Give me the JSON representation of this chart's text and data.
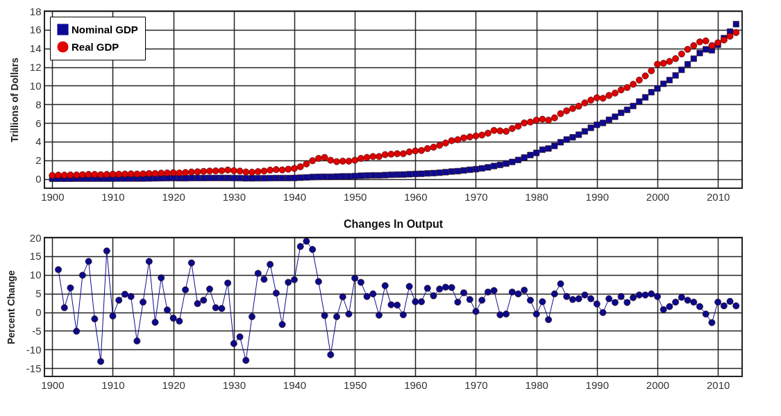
{
  "chart_data": [
    {
      "type": "scatter",
      "ylabel": "Trillions of Dollars",
      "xlim": [
        1898.7,
        2014
      ],
      "ylim": [
        -1,
        18
      ],
      "xticks": [
        1900,
        1910,
        1920,
        1930,
        1940,
        1950,
        1960,
        1970,
        1980,
        1990,
        2000,
        2010
      ],
      "yticks": [
        0,
        2,
        4,
        6,
        8,
        10,
        12,
        14,
        16,
        18
      ],
      "grid": true,
      "legend": "top left",
      "x": [
        1900,
        1901,
        1902,
        1903,
        1904,
        1905,
        1906,
        1907,
        1908,
        1909,
        1910,
        1911,
        1912,
        1913,
        1914,
        1915,
        1916,
        1917,
        1918,
        1919,
        1920,
        1921,
        1922,
        1923,
        1924,
        1925,
        1926,
        1927,
        1928,
        1929,
        1930,
        1931,
        1932,
        1933,
        1934,
        1935,
        1936,
        1937,
        1938,
        1939,
        1940,
        1941,
        1942,
        1943,
        1944,
        1945,
        1946,
        1947,
        1948,
        1949,
        1950,
        1951,
        1952,
        1953,
        1954,
        1955,
        1956,
        1957,
        1958,
        1959,
        1960,
        1961,
        1962,
        1963,
        1964,
        1965,
        1966,
        1967,
        1968,
        1969,
        1970,
        1971,
        1972,
        1973,
        1974,
        1975,
        1976,
        1977,
        1978,
        1979,
        1980,
        1981,
        1982,
        1983,
        1984,
        1985,
        1986,
        1987,
        1988,
        1989,
        1990,
        1991,
        1992,
        1993,
        1994,
        1995,
        1996,
        1997,
        1998,
        1999,
        2000,
        2001,
        2002,
        2003,
        2004,
        2005,
        2006,
        2007,
        2008,
        2009,
        2010,
        2011,
        2012,
        2013
      ],
      "series": [
        {
          "name": "Nominal GDP",
          "color": "#0a0a96",
          "marker": "square",
          "values": [
            0.02,
            0.02,
            0.02,
            0.02,
            0.03,
            0.03,
            0.03,
            0.03,
            0.03,
            0.03,
            0.03,
            0.04,
            0.04,
            0.04,
            0.04,
            0.04,
            0.05,
            0.06,
            0.07,
            0.08,
            0.09,
            0.07,
            0.07,
            0.09,
            0.09,
            0.09,
            0.1,
            0.1,
            0.1,
            0.1,
            0.09,
            0.08,
            0.06,
            0.06,
            0.07,
            0.07,
            0.08,
            0.09,
            0.09,
            0.09,
            0.1,
            0.13,
            0.16,
            0.2,
            0.22,
            0.23,
            0.23,
            0.25,
            0.27,
            0.27,
            0.3,
            0.34,
            0.36,
            0.38,
            0.38,
            0.41,
            0.44,
            0.46,
            0.47,
            0.5,
            0.53,
            0.55,
            0.59,
            0.62,
            0.66,
            0.72,
            0.79,
            0.83,
            0.91,
            0.98,
            1.04,
            1.13,
            1.24,
            1.38,
            1.5,
            1.64,
            1.82,
            2.03,
            2.29,
            2.56,
            2.79,
            3.13,
            3.26,
            3.54,
            3.93,
            4.22,
            4.46,
            4.74,
            5.1,
            5.48,
            5.8,
            6.0,
            6.34,
            6.67,
            7.09,
            7.41,
            7.82,
            8.3,
            8.75,
            9.3,
            9.7,
            10.2,
            10.6,
            11.1,
            11.7,
            12.3,
            12.9,
            13.5,
            13.9,
            13.8,
            14.4,
            15.1,
            15.8,
            16.6
          ]
        },
        {
          "name": "Real GDP",
          "color": "#e00000",
          "marker": "circle",
          "values": [
            0.37,
            0.4,
            0.4,
            0.42,
            0.42,
            0.45,
            0.48,
            0.48,
            0.45,
            0.48,
            0.5,
            0.5,
            0.52,
            0.54,
            0.52,
            0.54,
            0.58,
            0.58,
            0.62,
            0.64,
            0.66,
            0.64,
            0.68,
            0.74,
            0.76,
            0.8,
            0.84,
            0.86,
            0.88,
            0.95,
            0.88,
            0.84,
            0.74,
            0.72,
            0.78,
            0.84,
            0.94,
            1.0,
            0.96,
            1.04,
            1.12,
            1.3,
            1.6,
            1.95,
            2.2,
            2.3,
            2.0,
            1.85,
            1.9,
            1.9,
            2.0,
            2.2,
            2.3,
            2.4,
            2.4,
            2.6,
            2.65,
            2.7,
            2.7,
            2.9,
            3.0,
            3.05,
            3.25,
            3.4,
            3.6,
            3.85,
            4.1,
            4.2,
            4.4,
            4.5,
            4.6,
            4.7,
            4.9,
            5.2,
            5.15,
            5.1,
            5.4,
            5.65,
            6.0,
            6.1,
            6.3,
            6.4,
            6.3,
            6.55,
            7.0,
            7.3,
            7.55,
            7.8,
            8.15,
            8.45,
            8.7,
            8.65,
            8.95,
            9.2,
            9.55,
            9.8,
            10.15,
            10.6,
            11.05,
            11.6,
            12.3,
            12.4,
            12.6,
            12.9,
            13.4,
            13.9,
            14.3,
            14.7,
            14.8,
            14.3,
            14.6,
            14.9,
            15.3,
            15.7
          ]
        }
      ]
    },
    {
      "type": "line",
      "title": "Changes In Output",
      "ylabel": "Percent Change",
      "xlim": [
        1898.7,
        2014
      ],
      "ylim": [
        -17.2,
        20
      ],
      "xticks": [
        1900,
        1910,
        1920,
        1930,
        1940,
        1950,
        1960,
        1970,
        1980,
        1990,
        2000,
        2010
      ],
      "yticks": [
        -15,
        -10,
        -5,
        0,
        5,
        10,
        15,
        20
      ],
      "grid": true,
      "marker": "circle",
      "x": [
        1901,
        1902,
        1903,
        1904,
        1905,
        1906,
        1907,
        1908,
        1909,
        1910,
        1911,
        1912,
        1913,
        1914,
        1915,
        1916,
        1917,
        1918,
        1919,
        1920,
        1921,
        1922,
        1923,
        1924,
        1925,
        1926,
        1927,
        1928,
        1929,
        1930,
        1931,
        1932,
        1933,
        1934,
        1935,
        1936,
        1937,
        1938,
        1939,
        1940,
        1941,
        1942,
        1943,
        1944,
        1945,
        1946,
        1947,
        1948,
        1949,
        1950,
        1951,
        1952,
        1953,
        1954,
        1955,
        1956,
        1957,
        1958,
        1959,
        1960,
        1961,
        1962,
        1963,
        1964,
        1965,
        1966,
        1967,
        1968,
        1969,
        1970,
        1971,
        1972,
        1973,
        1974,
        1975,
        1976,
        1977,
        1978,
        1979,
        1980,
        1981,
        1982,
        1983,
        1984,
        1985,
        1986,
        1987,
        1988,
        1989,
        1990,
        1991,
        1992,
        1993,
        1994,
        1995,
        1996,
        1997,
        1998,
        1999,
        2000,
        2001,
        2002,
        2003,
        2004,
        2005,
        2006,
        2007,
        2008,
        2009,
        2010,
        2011,
        2012,
        2013
      ],
      "series": [
        {
          "color": "#0a0a8c",
          "values": [
            11.4,
            1.2,
            6.5,
            -5.1,
            9.9,
            13.6,
            -1.8,
            -13.2,
            16.4,
            -1.0,
            3.2,
            4.8,
            4.2,
            -7.7,
            2.7,
            13.6,
            -2.7,
            9.2,
            0.6,
            -1.6,
            -2.4,
            6.0,
            13.2,
            2.3,
            3.2,
            6.2,
            1.2,
            1.0,
            7.8,
            -8.4,
            -6.6,
            -12.9,
            -1.2,
            10.4,
            8.8,
            12.8,
            5.1,
            -3.3,
            8.0,
            8.7,
            17.6,
            19.0,
            16.8,
            8.2,
            -0.9,
            -11.4,
            -1.2,
            4.1,
            -0.5,
            9.1,
            8.0,
            4.2,
            4.9,
            -0.8,
            7.1,
            2.0,
            1.9,
            -0.7,
            6.9,
            2.8,
            2.8,
            6.4,
            4.4,
            6.2,
            6.7,
            6.6,
            2.7,
            5.2,
            3.4,
            0.2,
            3.2,
            5.4,
            5.8,
            -0.7,
            -0.5,
            5.4,
            4.9,
            5.9,
            3.2,
            -0.5,
            2.8,
            -2.0,
            4.9,
            7.6,
            4.2,
            3.4,
            3.6,
            4.6,
            3.6,
            2.2,
            -0.1,
            3.6,
            2.6,
            4.2,
            2.6,
            3.9,
            4.6,
            4.6,
            4.9,
            4.2,
            0.7,
            1.5,
            2.7,
            4.0,
            3.2,
            2.7,
            1.5,
            -0.5,
            -2.8,
            2.7,
            1.7,
            2.9,
            1.7
          ]
        }
      ]
    }
  ]
}
